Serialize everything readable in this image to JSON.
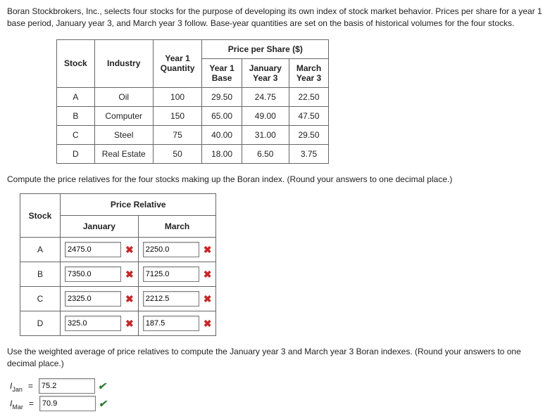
{
  "intro": "Boran Stockbrokers, Inc., selects four stocks for the purpose of developing its own index of stock market behavior. Prices per share for a year 1 base period, January year 3, and March year 3 follow. Base-year quantities are set on the basis of historical volumes for the four stocks.",
  "table1": {
    "headers": {
      "stock": "Stock",
      "industry": "Industry",
      "qty": "Year 1\nQuantity",
      "price_group": "Price per Share ($)",
      "y1base": "Year 1\nBase",
      "jan": "January\nYear 3",
      "mar": "March\nYear 3"
    },
    "rows": [
      {
        "stock": "A",
        "industry": "Oil",
        "qty": "100",
        "y1": "29.50",
        "jan": "24.75",
        "mar": "22.50"
      },
      {
        "stock": "B",
        "industry": "Computer",
        "qty": "150",
        "y1": "65.00",
        "jan": "49.00",
        "mar": "47.50"
      },
      {
        "stock": "C",
        "industry": "Steel",
        "qty": "75",
        "y1": "40.00",
        "jan": "31.00",
        "mar": "29.50"
      },
      {
        "stock": "D",
        "industry": "Real Estate",
        "qty": "50",
        "y1": "18.00",
        "jan": "6.50",
        "mar": "3.75"
      }
    ]
  },
  "instr1": "Compute the price relatives for the four stocks making up the Boran index. (Round your answers to one decimal place.)",
  "pr_table": {
    "headers": {
      "stock": "Stock",
      "group": "Price Relative",
      "jan": "January",
      "mar": "March"
    },
    "rows": [
      {
        "stock": "A",
        "jan": "2475.0",
        "mar": "2250.0",
        "jan_ok": false,
        "mar_ok": false
      },
      {
        "stock": "B",
        "jan": "7350.0",
        "mar": "7125.0",
        "jan_ok": false,
        "mar_ok": false
      },
      {
        "stock": "C",
        "jan": "2325.0",
        "mar": "2212.5",
        "jan_ok": false,
        "mar_ok": false
      },
      {
        "stock": "D",
        "jan": "325.0",
        "mar": "187.5",
        "jan_ok": false,
        "mar_ok": false
      }
    ]
  },
  "instr2": "Use the weighted average of price relatives to compute the January year 3 and March year 3 Boran indexes. (Round your answers to one decimal place.)",
  "indexes": {
    "jan_label_main": "I",
    "jan_label_sub": "Jan",
    "jan_val": "75.2",
    "jan_ok": true,
    "mar_label_main": "I",
    "mar_label_sub": "Mar",
    "mar_val": "70.9",
    "mar_ok": true
  },
  "marks": {
    "wrong": "✖",
    "correct": "✔"
  }
}
